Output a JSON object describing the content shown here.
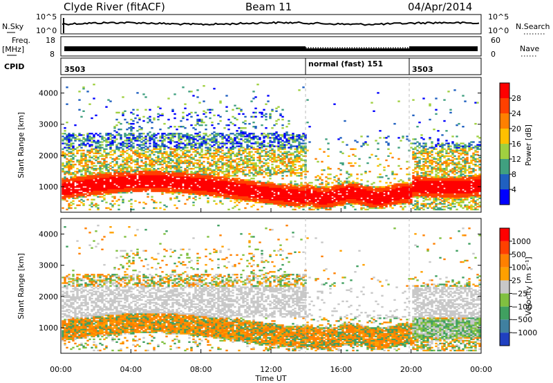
{
  "header": {
    "station": "Clyde River (fitACF)",
    "beam": "Beam 11",
    "date": "04/Apr/2014"
  },
  "strips": {
    "nsky_label": "N.Sky",
    "nsky_ticks": [
      "10^5",
      "10^0"
    ],
    "nsearch_label": "N.Search",
    "freq_label_1": "Freq.",
    "freq_label_2": "[MHz]",
    "freq_ticks": [
      "18",
      "8"
    ],
    "nave_ticks": [
      "60",
      "0"
    ],
    "nave_label": "Nave",
    "cpid_label": "CPID",
    "cpid_segments": [
      {
        "label": "3503",
        "start_hour": 0
      },
      {
        "label": "normal (fast) 151",
        "start_hour": 14
      },
      {
        "label": "3503",
        "start_hour": 20
      }
    ]
  },
  "chart_data": [
    {
      "type": "heatmap",
      "name": "power",
      "ylabel": "Slant Range [km]",
      "ylim": [
        180,
        4500
      ],
      "yticks": [
        "1000",
        "2000",
        "3000",
        "4000"
      ],
      "xlim_hours": [
        0,
        24
      ],
      "colorbar": {
        "label": "Power [dB]",
        "ticks": [
          "4",
          "8",
          "12",
          "16",
          "20",
          "24",
          "28"
        ],
        "colors": [
          "#0000ff",
          "#2060c0",
          "#40a080",
          "#a0d040",
          "#ffc000",
          "#ff8000",
          "#ff4000",
          "#ff0000"
        ]
      }
    },
    {
      "type": "heatmap",
      "name": "velocity",
      "ylabel": "Slant Range [km]",
      "ylim": [
        180,
        4500
      ],
      "yticks": [
        "1000",
        "2000",
        "3000",
        "4000"
      ],
      "xlim_hours": [
        0,
        24
      ],
      "colorbar": {
        "label": "Velocity [m s⁻¹]",
        "ticks": [
          "1000",
          "500",
          "100",
          "25",
          "−25",
          "−100",
          "−500",
          "−1000"
        ],
        "colors": [
          "#2040c0",
          "#4080a0",
          "#40a060",
          "#80c040",
          "#c8c8c8",
          "#ffa000",
          "#ff8000",
          "#ff4000",
          "#ff0000"
        ]
      }
    }
  ],
  "xaxis": {
    "label": "Time UT",
    "ticks": [
      "00:00",
      "04:00",
      "08:00",
      "12:00",
      "16:00",
      "20:00",
      "00:00"
    ]
  }
}
